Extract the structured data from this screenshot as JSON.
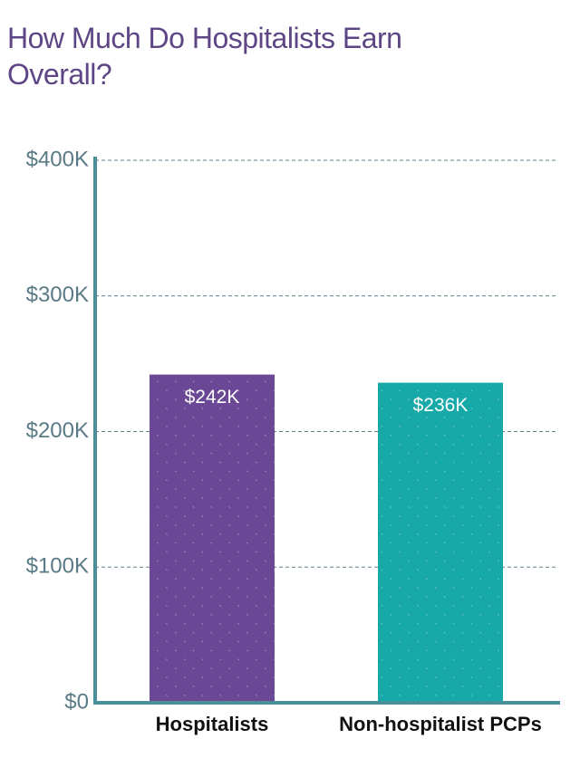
{
  "chart_data": {
    "type": "bar",
    "title": "How Much Do Hospitalists Earn Overall?",
    "categories": [
      "Hospitalists",
      "Non-hospitalist PCPs"
    ],
    "values": [
      242000,
      236000
    ],
    "value_labels": [
      "$242K",
      "$236K"
    ],
    "colors": [
      "#6b4896",
      "#17a8a8"
    ],
    "ylim": [
      0,
      400000
    ],
    "yticks": [
      {
        "value": 0,
        "label": "$0"
      },
      {
        "value": 100000,
        "label": "$100K"
      },
      {
        "value": 200000,
        "label": "$200K"
      },
      {
        "value": 300000,
        "label": "$300K"
      },
      {
        "value": 400000,
        "label": "$400K"
      }
    ],
    "grid": true
  }
}
